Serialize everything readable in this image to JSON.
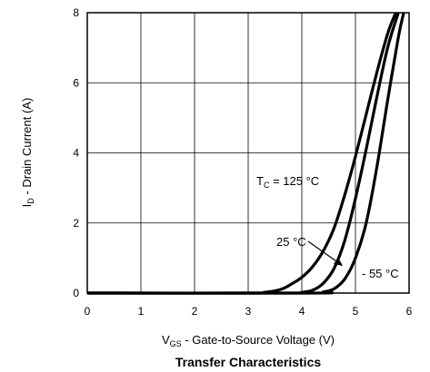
{
  "chart_data": {
    "type": "line",
    "title": "Transfer Characteristics",
    "xlabel": {
      "main": "V",
      "sub": "GS",
      "rest": " - Gate-to-Source Voltage (V)"
    },
    "ylabel": {
      "main": "I",
      "sub": "D",
      "rest": " - Drain Current (A)"
    },
    "xlim": [
      0,
      6
    ],
    "ylim": [
      0,
      8
    ],
    "xticks": [
      "0",
      "1",
      "2",
      "3",
      "4",
      "5",
      "6"
    ],
    "yticks": [
      "0",
      "2",
      "4",
      "6",
      "8"
    ],
    "grid": true,
    "series": [
      {
        "label": {
          "pre": "T",
          "sub": "C",
          "post": " = 125 °C"
        },
        "x": [
          0,
          3.0,
          3.3,
          3.6,
          3.8,
          4.0,
          4.2,
          4.4,
          4.6,
          4.8,
          5.0,
          5.2,
          5.4,
          5.6,
          5.75
        ],
        "y": [
          0,
          0.0,
          0.02,
          0.1,
          0.25,
          0.45,
          0.75,
          1.2,
          1.85,
          2.8,
          3.9,
          5.1,
          6.3,
          7.4,
          8.0
        ]
      },
      {
        "label": {
          "pre": "25 °C",
          "sub": "",
          "post": ""
        },
        "x": [
          0,
          3.8,
          4.0,
          4.2,
          4.4,
          4.6,
          4.8,
          5.0,
          5.2,
          5.4,
          5.6,
          5.8
        ],
        "y": [
          0,
          0.0,
          0.02,
          0.08,
          0.28,
          0.7,
          1.5,
          2.7,
          4.1,
          5.6,
          7.0,
          8.0
        ]
      },
      {
        "label": {
          "pre": "- 55 °C",
          "sub": "",
          "post": ""
        },
        "x": [
          0,
          4.2,
          4.4,
          4.6,
          4.8,
          5.0,
          5.2,
          5.4,
          5.6,
          5.8,
          5.9
        ],
        "y": [
          0,
          0.0,
          0.03,
          0.12,
          0.4,
          1.0,
          2.0,
          3.6,
          5.5,
          7.3,
          8.0
        ]
      }
    ]
  }
}
